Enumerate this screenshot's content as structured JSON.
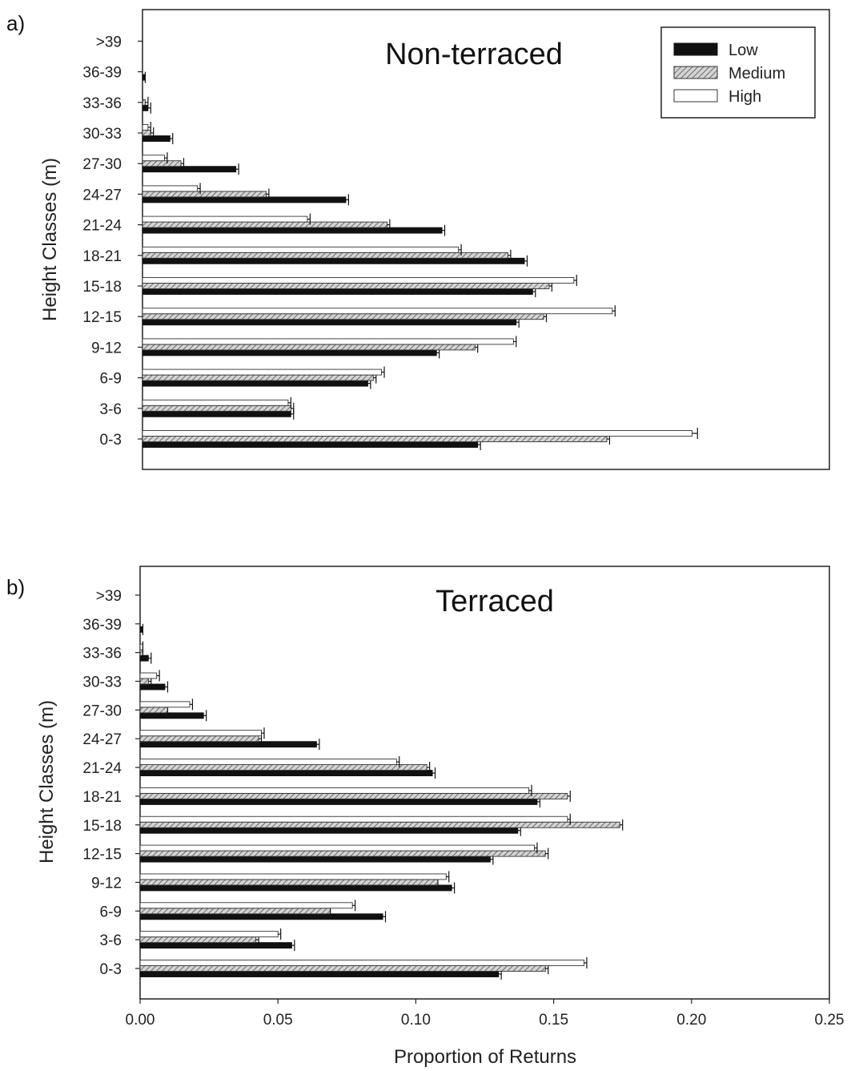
{
  "chart_data": [
    {
      "type": "bar",
      "orientation": "horizontal",
      "panel_label": "a)",
      "title": "Non-terraced",
      "ylabel": "Height Classes (m)",
      "xlabel": "",
      "xlim": [
        0,
        0.25
      ],
      "categories": [
        "0-3",
        "3-6",
        "6-9",
        "9-12",
        "12-15",
        "15-18",
        "18-21",
        "21-24",
        "24-27",
        "27-30",
        "30-33",
        "33-36",
        "36-39",
        ">39"
      ],
      "legend": {
        "position": "top-right",
        "entries": [
          "Low",
          "Medium",
          "High"
        ]
      },
      "series": [
        {
          "name": "Low",
          "color": "#111111",
          "pattern": "solid",
          "values": [
            0.122,
            0.054,
            0.082,
            0.107,
            0.136,
            0.142,
            0.139,
            0.109,
            0.074,
            0.034,
            0.01,
            0.002,
            0.001,
            0.0
          ],
          "errors": [
            0.001,
            0.001,
            0.001,
            0.001,
            0.001,
            0.001,
            0.001,
            0.001,
            0.001,
            0.001,
            0.001,
            0.001,
            0.0,
            0.0
          ]
        },
        {
          "name": "Medium",
          "color": "#9a9a9a",
          "pattern": "hatched",
          "values": [
            0.169,
            0.054,
            0.084,
            0.121,
            0.146,
            0.148,
            0.133,
            0.089,
            0.045,
            0.014,
            0.003,
            0.001,
            0.0,
            0.0
          ],
          "errors": [
            0.001,
            0.001,
            0.001,
            0.001,
            0.001,
            0.001,
            0.001,
            0.001,
            0.001,
            0.001,
            0.001,
            0.001,
            0.0,
            0.0
          ]
        },
        {
          "name": "High",
          "color": "#ffffff",
          "pattern": "open",
          "values": [
            0.2,
            0.053,
            0.087,
            0.135,
            0.171,
            0.157,
            0.115,
            0.06,
            0.02,
            0.008,
            0.002,
            0.0,
            0.0,
            0.0
          ],
          "errors": [
            0.002,
            0.001,
            0.001,
            0.001,
            0.001,
            0.001,
            0.001,
            0.001,
            0.001,
            0.001,
            0.001,
            0.0,
            0.0,
            0.0
          ]
        }
      ]
    },
    {
      "type": "bar",
      "orientation": "horizontal",
      "panel_label": "b)",
      "title": "Terraced",
      "ylabel": "Height Classes (m)",
      "xlabel": "Proportion of Returns",
      "xlim": [
        0,
        0.25
      ],
      "xticks": [
        "0.00",
        "0.05",
        "0.10",
        "0.15",
        "0.20",
        "0.25"
      ],
      "categories": [
        "0-3",
        "3-6",
        "6-9",
        "9-12",
        "12-15",
        "15-18",
        "18-21",
        "21-24",
        "24-27",
        "27-30",
        "30-33",
        "33-36",
        "36-39",
        ">39"
      ],
      "series": [
        {
          "name": "Low",
          "color": "#111111",
          "pattern": "solid",
          "values": [
            0.13,
            0.055,
            0.088,
            0.113,
            0.127,
            0.137,
            0.144,
            0.106,
            0.064,
            0.023,
            0.009,
            0.003,
            0.001,
            0.0
          ],
          "errors": [
            0.001,
            0.001,
            0.001,
            0.001,
            0.001,
            0.001,
            0.001,
            0.001,
            0.001,
            0.001,
            0.001,
            0.001,
            0.0,
            0.0
          ]
        },
        {
          "name": "Medium",
          "color": "#9a9a9a",
          "pattern": "hatched",
          "values": [
            0.147,
            0.042,
            0.069,
            0.108,
            0.147,
            0.174,
            0.155,
            0.104,
            0.043,
            0.01,
            0.003,
            0.001,
            0.0,
            0.0
          ],
          "errors": [
            0.001,
            0.001,
            0.0,
            0.0,
            0.001,
            0.001,
            0.001,
            0.001,
            0.001,
            0.0,
            0.001,
            0.0,
            0.0,
            0.0
          ]
        },
        {
          "name": "High",
          "color": "#ffffff",
          "pattern": "open",
          "values": [
            0.161,
            0.05,
            0.077,
            0.111,
            0.143,
            0.155,
            0.141,
            0.093,
            0.044,
            0.018,
            0.006,
            0.001,
            0.0,
            0.0
          ],
          "errors": [
            0.001,
            0.001,
            0.001,
            0.001,
            0.001,
            0.001,
            0.001,
            0.001,
            0.001,
            0.001,
            0.001,
            0.0,
            0.0,
            0.0
          ]
        }
      ]
    }
  ]
}
